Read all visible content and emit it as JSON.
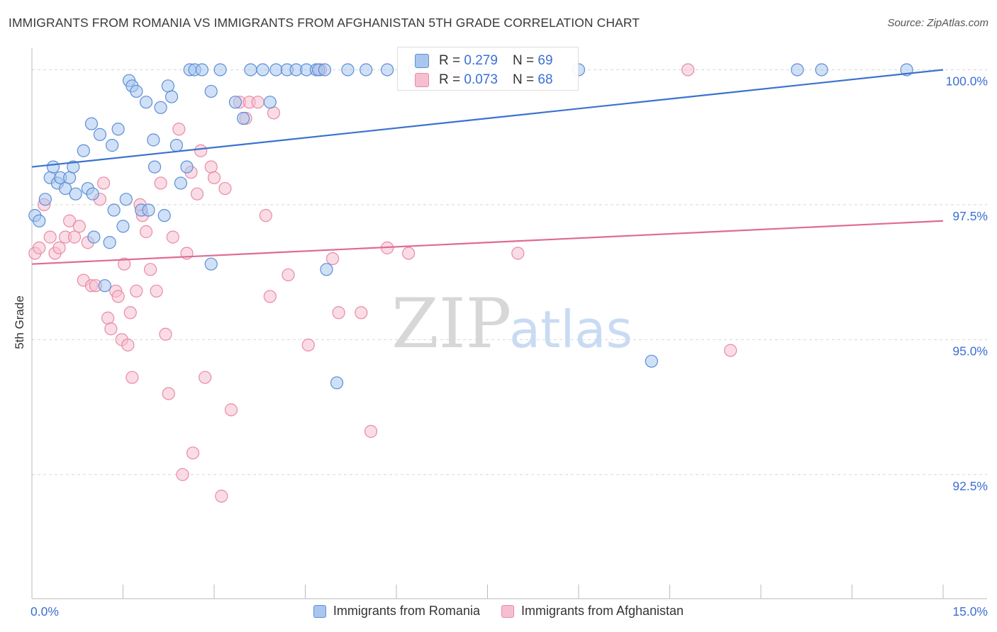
{
  "title": "IMMIGRANTS FROM ROMANIA VS IMMIGRANTS FROM AFGHANISTAN 5TH GRADE CORRELATION CHART",
  "source": "Source: ZipAtlas.com",
  "watermark": {
    "zip": "ZIP",
    "atlas": "atlas"
  },
  "colors": {
    "blue_fill": "#a9c6ef",
    "blue_stroke": "#5b8fd6",
    "blue_line": "#3b72cf",
    "pink_fill": "#f6bfd0",
    "pink_stroke": "#e98aa8",
    "pink_line": "#e06a93",
    "grid": "#d8d8d8",
    "tick_label": "#3b6fd4"
  },
  "stats": [
    {
      "r_label": "R = ",
      "r_value": "0.279",
      "n_label": "N = ",
      "n_value": "69"
    },
    {
      "r_label": "R = ",
      "r_value": "0.073",
      "n_label": "N = ",
      "n_value": "68"
    }
  ],
  "chart_data": {
    "type": "scatter",
    "title": "IMMIGRANTS FROM ROMANIA VS IMMIGRANTS FROM AFGHANISTAN 5TH GRADE CORRELATION CHART",
    "xlabel": "",
    "ylabel": "5th Grade",
    "xlim": [
      0,
      15
    ],
    "ylim": [
      90.2,
      100.4
    ],
    "x_tick_labels": [
      "0.0%",
      "15.0%"
    ],
    "y_ticks": [
      92.5,
      95.0,
      97.5,
      100.0
    ],
    "y_tick_labels": [
      "92.5%",
      "95.0%",
      "97.5%",
      "100.0%"
    ],
    "grid": true,
    "legend_position": "bottom",
    "series": [
      {
        "name": "Immigrants from Romania",
        "trend": [
          [
            0,
            98.2
          ],
          [
            15,
            100.0
          ]
        ],
        "points": [
          [
            0.05,
            97.3
          ],
          [
            0.12,
            97.2
          ],
          [
            0.22,
            97.6
          ],
          [
            0.3,
            98.0
          ],
          [
            0.35,
            98.2
          ],
          [
            0.42,
            97.9
          ],
          [
            0.47,
            98.0
          ],
          [
            0.55,
            97.8
          ],
          [
            0.62,
            98.0
          ],
          [
            0.68,
            98.2
          ],
          [
            0.72,
            97.7
          ],
          [
            0.85,
            98.5
          ],
          [
            0.92,
            97.8
          ],
          [
            0.98,
            99.0
          ],
          [
            1.0,
            97.7
          ],
          [
            1.12,
            98.8
          ],
          [
            1.02,
            96.9
          ],
          [
            1.2,
            96.0
          ],
          [
            1.28,
            96.8
          ],
          [
            1.32,
            98.6
          ],
          [
            1.35,
            97.4
          ],
          [
            1.42,
            98.9
          ],
          [
            1.5,
            97.1
          ],
          [
            1.55,
            97.6
          ],
          [
            1.6,
            99.8
          ],
          [
            1.65,
            99.7
          ],
          [
            1.72,
            99.6
          ],
          [
            1.8,
            97.4
          ],
          [
            1.88,
            99.4
          ],
          [
            1.92,
            97.4
          ],
          [
            2.0,
            98.7
          ],
          [
            2.02,
            98.2
          ],
          [
            2.12,
            99.3
          ],
          [
            2.18,
            97.3
          ],
          [
            2.24,
            99.7
          ],
          [
            2.3,
            99.5
          ],
          [
            2.38,
            98.6
          ],
          [
            2.45,
            97.9
          ],
          [
            2.55,
            98.2
          ],
          [
            2.6,
            100.0
          ],
          [
            2.68,
            100.0
          ],
          [
            2.8,
            100.0
          ],
          [
            2.95,
            99.6
          ],
          [
            2.95,
            96.4
          ],
          [
            3.1,
            100.0
          ],
          [
            3.35,
            99.4
          ],
          [
            3.48,
            99.1
          ],
          [
            3.6,
            100.0
          ],
          [
            3.8,
            100.0
          ],
          [
            3.92,
            99.4
          ],
          [
            4.02,
            100.0
          ],
          [
            4.2,
            100.0
          ],
          [
            4.35,
            100.0
          ],
          [
            4.52,
            100.0
          ],
          [
            4.68,
            100.0
          ],
          [
            4.72,
            100.0
          ],
          [
            4.82,
            100.0
          ],
          [
            4.85,
            96.3
          ],
          [
            5.02,
            94.2
          ],
          [
            5.2,
            100.0
          ],
          [
            5.5,
            100.0
          ],
          [
            5.85,
            100.0
          ],
          [
            6.3,
            100.0
          ],
          [
            7.45,
            100.0
          ],
          [
            9.0,
            100.0
          ],
          [
            10.2,
            94.6
          ],
          [
            12.6,
            100.0
          ],
          [
            13.0,
            100.0
          ],
          [
            14.4,
            100.0
          ]
        ]
      },
      {
        "name": "Immigrants from Afghanistan",
        "trend": [
          [
            0,
            96.4
          ],
          [
            15,
            97.2
          ]
        ],
        "points": [
          [
            0.05,
            96.6
          ],
          [
            0.12,
            96.7
          ],
          [
            0.2,
            97.5
          ],
          [
            0.3,
            96.9
          ],
          [
            0.38,
            96.6
          ],
          [
            0.45,
            96.7
          ],
          [
            0.55,
            96.9
          ],
          [
            0.62,
            97.2
          ],
          [
            0.7,
            96.9
          ],
          [
            0.78,
            97.1
          ],
          [
            0.85,
            96.1
          ],
          [
            0.92,
            96.8
          ],
          [
            0.98,
            96.0
          ],
          [
            1.05,
            96.0
          ],
          [
            1.12,
            97.6
          ],
          [
            1.18,
            97.9
          ],
          [
            1.25,
            95.4
          ],
          [
            1.3,
            95.2
          ],
          [
            1.38,
            95.9
          ],
          [
            1.42,
            95.8
          ],
          [
            1.48,
            95.0
          ],
          [
            1.52,
            96.4
          ],
          [
            1.58,
            94.9
          ],
          [
            1.62,
            95.5
          ],
          [
            1.65,
            94.3
          ],
          [
            1.72,
            95.9
          ],
          [
            1.78,
            97.5
          ],
          [
            1.82,
            97.3
          ],
          [
            1.88,
            97.0
          ],
          [
            1.95,
            96.3
          ],
          [
            2.05,
            95.9
          ],
          [
            2.12,
            97.9
          ],
          [
            2.2,
            95.1
          ],
          [
            2.25,
            94.0
          ],
          [
            2.32,
            96.9
          ],
          [
            2.42,
            98.9
          ],
          [
            2.48,
            92.5
          ],
          [
            2.55,
            96.6
          ],
          [
            2.62,
            98.1
          ],
          [
            2.65,
            92.9
          ],
          [
            2.72,
            97.7
          ],
          [
            2.78,
            98.5
          ],
          [
            2.85,
            94.3
          ],
          [
            2.95,
            98.2
          ],
          [
            3.0,
            98.0
          ],
          [
            3.12,
            92.1
          ],
          [
            3.18,
            97.8
          ],
          [
            3.28,
            93.7
          ],
          [
            3.42,
            99.4
          ],
          [
            3.52,
            99.1
          ],
          [
            3.58,
            99.4
          ],
          [
            3.72,
            99.4
          ],
          [
            3.85,
            97.3
          ],
          [
            3.92,
            95.8
          ],
          [
            3.98,
            99.2
          ],
          [
            4.22,
            96.2
          ],
          [
            4.55,
            94.9
          ],
          [
            4.75,
            100.0
          ],
          [
            4.95,
            96.5
          ],
          [
            5.05,
            95.5
          ],
          [
            5.42,
            95.5
          ],
          [
            5.58,
            93.3
          ],
          [
            5.85,
            96.7
          ],
          [
            6.2,
            96.6
          ],
          [
            6.95,
            100.0
          ],
          [
            8.0,
            96.6
          ],
          [
            10.8,
            100.0
          ],
          [
            11.5,
            94.8
          ]
        ]
      }
    ]
  }
}
